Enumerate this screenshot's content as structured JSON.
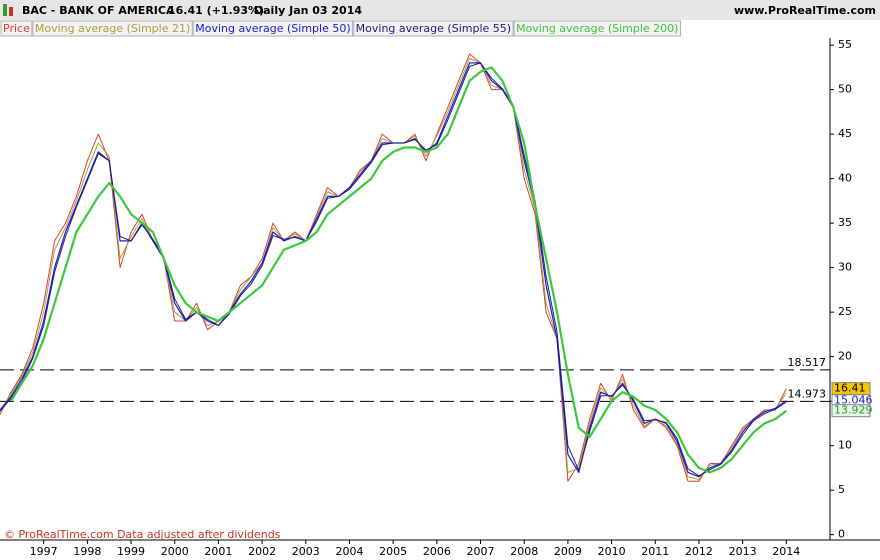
{
  "chart_data": {
    "type": "line",
    "title": "BAC - BANK OF AMERICA",
    "subtitle": "16.41 (+1.93%)",
    "period": "Daily  Jan 03 2014",
    "source": "www.ProRealTime.com",
    "footnote": "© ProRealTime.com  Data adjusted after dividends",
    "x": [
      1996,
      1996.25,
      1996.5,
      1996.75,
      1997,
      1997.25,
      1997.5,
      1997.75,
      1998,
      1998.25,
      1998.5,
      1998.75,
      1999,
      1999.25,
      1999.5,
      1999.75,
      2000,
      2000.25,
      2000.5,
      2000.75,
      2001,
      2001.25,
      2001.5,
      2001.75,
      2002,
      2002.25,
      2002.5,
      2002.75,
      2003,
      2003.25,
      2003.5,
      2003.75,
      2004,
      2004.25,
      2004.5,
      2004.75,
      2005,
      2005.25,
      2005.5,
      2005.75,
      2006,
      2006.25,
      2006.5,
      2006.75,
      2007,
      2007.25,
      2007.5,
      2007.75,
      2008,
      2008.25,
      2008.5,
      2008.75,
      2009,
      2009.25,
      2009.5,
      2009.75,
      2010,
      2010.25,
      2010.5,
      2010.75,
      2011,
      2011.25,
      2011.5,
      2011.75,
      2012,
      2012.25,
      2012.5,
      2012.75,
      2013,
      2013.25,
      2013.5,
      2013.75,
      2014
    ],
    "series": [
      {
        "name": "Price",
        "color": "#e0402a",
        "width": 1,
        "last_value_box": true,
        "box_fill": "#f5c400",
        "box_text": "#000000",
        "values": [
          13.5,
          16,
          18,
          21,
          26,
          33,
          35,
          38,
          42,
          45,
          42,
          30,
          34,
          36,
          33,
          31,
          24,
          24,
          26,
          23,
          24,
          25,
          28,
          29,
          31,
          35,
          33,
          34,
          33,
          36,
          39,
          38,
          39,
          41,
          42,
          45,
          44,
          44,
          45,
          42,
          45,
          48,
          51,
          54,
          53,
          50,
          50,
          48,
          40,
          36,
          25,
          22,
          6,
          8,
          13,
          17,
          15,
          18,
          14,
          12,
          13,
          12,
          10,
          6,
          6,
          8,
          8,
          10,
          12,
          13,
          14,
          14,
          16.41
        ]
      },
      {
        "name": "Moving average (Simple 21)",
        "color": "#a8a040",
        "width": 1,
        "last_value_box": false,
        "values": [
          13.8,
          15.8,
          17.8,
          20.5,
          25,
          32,
          34.5,
          37.5,
          41,
          44,
          42.5,
          31,
          33.5,
          35.5,
          33,
          31,
          25,
          24,
          25.5,
          23.5,
          24,
          25,
          27.5,
          29,
          30.5,
          34.5,
          33,
          33.8,
          33,
          35.8,
          38.5,
          38,
          39,
          40.8,
          42,
          44.5,
          44,
          44,
          44.8,
          42.5,
          44.8,
          47.5,
          50.5,
          53.5,
          53,
          50.5,
          50,
          48,
          41,
          36.5,
          26,
          22,
          7,
          7.5,
          12.5,
          16.5,
          15.2,
          17.5,
          14.5,
          12.2,
          13,
          12.2,
          10.2,
          6.5,
          6.2,
          7.8,
          8,
          9.8,
          11.8,
          12.8,
          13.9,
          14.1,
          15.9
        ]
      },
      {
        "name": "Moving average (Simple 50)",
        "color": "#1c1cd0",
        "width": 1.2,
        "last_value_box": true,
        "box_fill": "#ffffff",
        "box_text": "#1c1cd0",
        "values": [
          14,
          15.5,
          17.5,
          20,
          24,
          30,
          34,
          37,
          40,
          43,
          42,
          33,
          33,
          35,
          33,
          31,
          26,
          24,
          25,
          24,
          23.5,
          25,
          27,
          28.5,
          30.5,
          34,
          33,
          33.5,
          33,
          35.5,
          38,
          38,
          39,
          40.5,
          42,
          44,
          44,
          44,
          44.5,
          43,
          44,
          47,
          50,
          53,
          53,
          51,
          50,
          48,
          42,
          37,
          28,
          22,
          9,
          7,
          12,
          16,
          15.5,
          17,
          15,
          12.5,
          13,
          12.5,
          10.5,
          7,
          6.5,
          7.5,
          8,
          9.5,
          11.5,
          13,
          13.8,
          14.2,
          15.046
        ]
      },
      {
        "name": "Moving average (Simple 55)",
        "color": "#202080",
        "width": 1,
        "last_value_box": false,
        "values": [
          13.9,
          15.3,
          17.2,
          19.8,
          23.5,
          29.5,
          33.5,
          36.8,
          39.8,
          42.8,
          42,
          33.5,
          33,
          34.8,
          33.2,
          31.2,
          26.5,
          24.2,
          25,
          24.2,
          23.5,
          24.8,
          26.8,
          28.2,
          30.2,
          33.6,
          33.2,
          33.4,
          33,
          35.2,
          37.8,
          38,
          38.8,
          40.3,
          41.8,
          43.8,
          44,
          44,
          44.4,
          43.2,
          43.8,
          46.6,
          49.6,
          52.6,
          53,
          51.3,
          50.1,
          48.2,
          42.6,
          37.5,
          29,
          22.8,
          10,
          7.2,
          11.6,
          15.6,
          15.6,
          16.8,
          15.2,
          12.8,
          12.9,
          12.6,
          10.8,
          7.4,
          6.6,
          7.3,
          7.9,
          9.3,
          11.2,
          12.8,
          13.6,
          14.1,
          14.9
        ]
      },
      {
        "name": "Moving average (Simple 200)",
        "color": "#3cc83c",
        "width": 2.2,
        "last_value_box": true,
        "box_fill": "#e8f8e8",
        "box_text": "#2a9a2a",
        "values": [
          null,
          15,
          17,
          19,
          22,
          26,
          30,
          34,
          36,
          38,
          39.5,
          38,
          36,
          35,
          34,
          31,
          28,
          26,
          25,
          24.5,
          24,
          25,
          26,
          27,
          28,
          30,
          32,
          32.5,
          33,
          34,
          36,
          37,
          38,
          39,
          40,
          42,
          43,
          43.5,
          43.5,
          43,
          43.5,
          45,
          48,
          51,
          52,
          52.5,
          51,
          48,
          44,
          37,
          31,
          25,
          18,
          12,
          11,
          13,
          15,
          16,
          15.5,
          14.5,
          14,
          13,
          11.5,
          9,
          7.5,
          7,
          7.5,
          8.5,
          10,
          11.5,
          12.5,
          13,
          13.929
        ]
      }
    ],
    "hlines": [
      18.517,
      14.973
    ],
    "xlim": [
      1996,
      2015
    ],
    "xticks": [
      1997,
      1998,
      1999,
      2000,
      2001,
      2002,
      2003,
      2004,
      2005,
      2006,
      2007,
      2008,
      2009,
      2010,
      2011,
      2012,
      2013,
      2014
    ],
    "ylim": [
      -0.6,
      55.8
    ],
    "yticks": [
      0,
      5,
      10,
      15,
      20,
      25,
      30,
      35,
      40,
      45,
      50,
      55
    ],
    "grid": false
  }
}
